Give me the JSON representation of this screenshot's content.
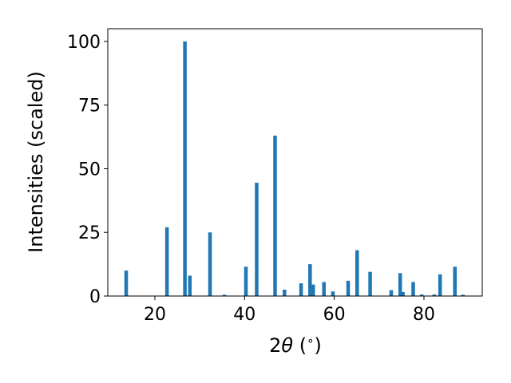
{
  "chart_data": {
    "type": "bar",
    "xlabel_parts": [
      "2",
      "θ",
      " (",
      "∘",
      ")"
    ],
    "ylabel": "Intensities (scaled)",
    "xlim": [
      9.5,
      93
    ],
    "ylim": [
      0,
      105
    ],
    "xticks": [
      20,
      40,
      60,
      80
    ],
    "yticks": [
      0,
      25,
      50,
      75,
      100
    ],
    "bar_color": "#1f77b4",
    "grid": false,
    "x": [
      13.6,
      22.7,
      26.7,
      27.8,
      32.3,
      35.5,
      40.3,
      42.7,
      46.8,
      48.9,
      52.6,
      54.6,
      55.3,
      57.7,
      59.7,
      63.1,
      65.1,
      68.0,
      72.7,
      74.7,
      75.3,
      77.6,
      79.5,
      82.3,
      83.6,
      86.9,
      88.7
    ],
    "values": [
      10,
      27,
      100,
      8,
      25,
      0.5,
      11.5,
      44.5,
      63,
      2.5,
      5,
      12.5,
      4.5,
      5.5,
      1.8,
      6,
      18,
      9.5,
      2.3,
      9,
      1.6,
      5.5,
      0.6,
      0.6,
      8.5,
      11.5,
      0.5
    ]
  }
}
